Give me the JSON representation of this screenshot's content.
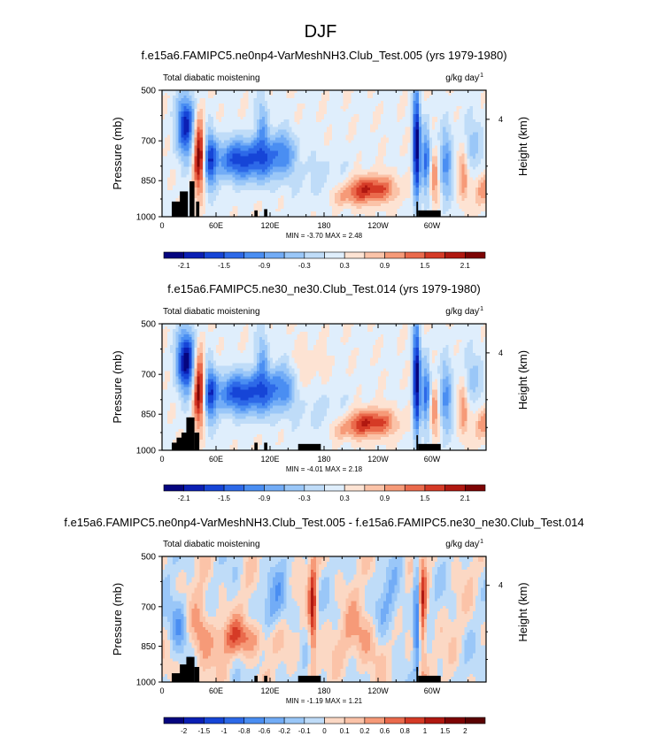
{
  "figure_title": "DJF",
  "chart_data": [
    {
      "type": "heatmap",
      "title": "f.e15a6.FAMIPC5.ne0np4-VarMeshNH3.Club_Test.005 (yrs 1979-1980)",
      "variable": "Total diabatic moistening",
      "units_text": "g/kg day",
      "units_exp": "-1",
      "ylabel": "Pressure (mb)",
      "y2label": "Height (km)",
      "y2_ticks": [
        "4"
      ],
      "yticks": [
        "500",
        "700",
        "850",
        "1000"
      ],
      "xticks": [
        "0",
        "60E",
        "120E",
        "180",
        "120W",
        "60W"
      ],
      "min_label": "MIN = ",
      "min": "-3.70",
      "max_label": "MAX = ",
      "max": "2.48",
      "colorbar_labels": [
        "-2.1",
        "-1.5",
        "-0.9",
        "-0.3",
        "0.3",
        "0.9",
        "1.5",
        "2.1"
      ],
      "range": [
        -2.4,
        2.4
      ]
    },
    {
      "type": "heatmap",
      "title": "f.e15a6.FAMIPC5.ne30_ne30.Club_Test.014 (yrs 1979-1980)",
      "variable": "Total diabatic moistening",
      "units_text": "g/kg day",
      "units_exp": "-1",
      "ylabel": "Pressure (mb)",
      "y2label": "Height (km)",
      "y2_ticks": [
        "4"
      ],
      "yticks": [
        "500",
        "700",
        "850",
        "1000"
      ],
      "xticks": [
        "0",
        "60E",
        "120E",
        "180",
        "120W",
        "60W"
      ],
      "min_label": "MIN = ",
      "min": "-4.01",
      "max_label": "MAX = ",
      "max": "2.18",
      "colorbar_labels": [
        "-2.1",
        "-1.5",
        "-0.9",
        "-0.3",
        "0.3",
        "0.9",
        "1.5",
        "2.1"
      ],
      "range": [
        -2.4,
        2.4
      ]
    },
    {
      "type": "heatmap",
      "title": "f.e15a6.FAMIPC5.ne0np4-VarMeshNH3.Club_Test.005 - f.e15a6.FAMIPC5.ne30_ne30.Club_Test.014",
      "variable": "Total diabatic moistening",
      "units_text": "g/kg day",
      "units_exp": "-1",
      "ylabel": "Pressure (mb)",
      "y2label": "Height (km)",
      "y2_ticks": [
        "4"
      ],
      "yticks": [
        "500",
        "700",
        "850",
        "1000"
      ],
      "xticks": [
        "0",
        "60E",
        "120E",
        "180",
        "120W",
        "60W"
      ],
      "min_label": "MIN = ",
      "min": "-1.19",
      "max_label": "MAX = ",
      "max": "1.21",
      "colorbar_labels": [
        "-2",
        "-1.5",
        "-1",
        "-0.8",
        "-0.6",
        "-0.2",
        "-0.1",
        "0",
        "0.1",
        "0.2",
        "0.6",
        "0.8",
        "1",
        "1.5",
        "2"
      ],
      "range": [
        -1.2,
        1.2
      ]
    }
  ],
  "palette": {
    "panel12": [
      "#05057f",
      "#0b1fb4",
      "#1645d7",
      "#2d69e8",
      "#4a8ef2",
      "#72acf6",
      "#9ac7f8",
      "#bfdcf8",
      "#dfeefc",
      "#fde3d3",
      "#fbc3a8",
      "#f69a78",
      "#ea6a4c",
      "#d53a26",
      "#b01810",
      "#7d0404"
    ],
    "panel3": [
      "#05057f",
      "#0b1fb4",
      "#1645d7",
      "#2d69e8",
      "#4a8ef2",
      "#72acf6",
      "#9ac7f8",
      "#bfdcf8",
      "#fbd8c4",
      "#fbc3a8",
      "#f69a78",
      "#ea6a4c",
      "#d53a26",
      "#b01810",
      "#7d0404",
      "#5a0202"
    ],
    "topography": "#000000"
  }
}
